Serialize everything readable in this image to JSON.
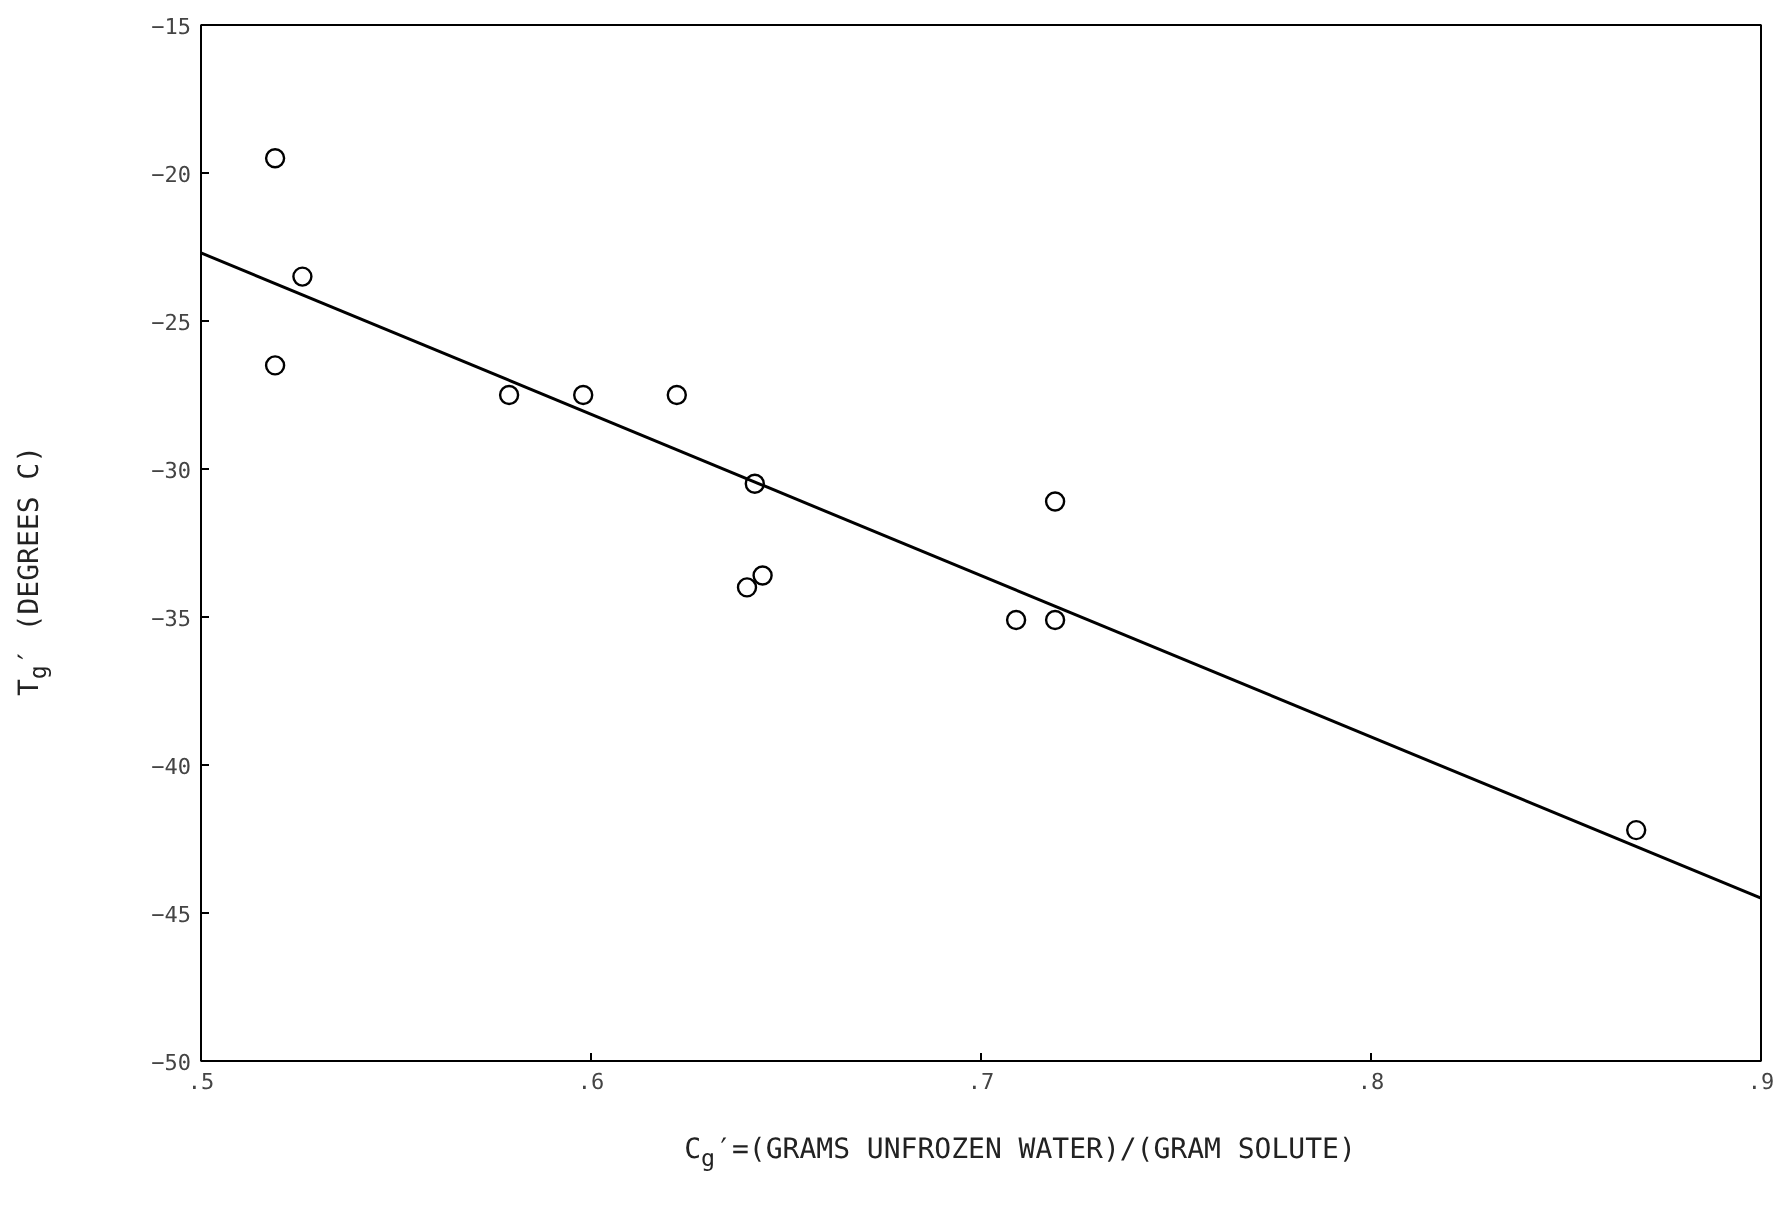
{
  "chart_data": {
    "type": "scatter",
    "xlabel": "C$_{g}$′=(GRAMS UNFROZEN WATER)/(GRAM SOLUTE)",
    "ylabel": "T$_{g}$′ (DEGREES C)",
    "xlim": [
      0.5,
      0.9
    ],
    "ylim": [
      -50,
      -15
    ],
    "xticks": [
      {
        "value": 0.5,
        "label": ".5"
      },
      {
        "value": 0.6,
        "label": ".6"
      },
      {
        "value": 0.7,
        "label": ".7"
      },
      {
        "value": 0.8,
        "label": ".8"
      },
      {
        "value": 0.9,
        "label": ".9"
      }
    ],
    "yticks": [
      -50,
      -45,
      -40,
      -35,
      -30,
      -25,
      -20,
      -15
    ],
    "grid": false,
    "marker": "circle",
    "series": [
      {
        "type": "scatter",
        "color": "#000000",
        "x": [
          0.519,
          0.526,
          0.519,
          0.579,
          0.598,
          0.622,
          0.642,
          0.64,
          0.644,
          0.709,
          0.719,
          0.719,
          0.868
        ],
        "values": [
          -19.5,
          -23.5,
          -26.5,
          -27.5,
          -27.5,
          -27.5,
          -30.5,
          -34.0,
          -33.6,
          -35.1,
          -35.1,
          -31.1,
          -42.2
        ]
      },
      {
        "type": "line",
        "color": "#000000",
        "line_style": "solid",
        "marker": "none",
        "x": [
          0.5,
          0.9
        ],
        "values": [
          -22.7,
          -44.5
        ]
      }
    ]
  }
}
